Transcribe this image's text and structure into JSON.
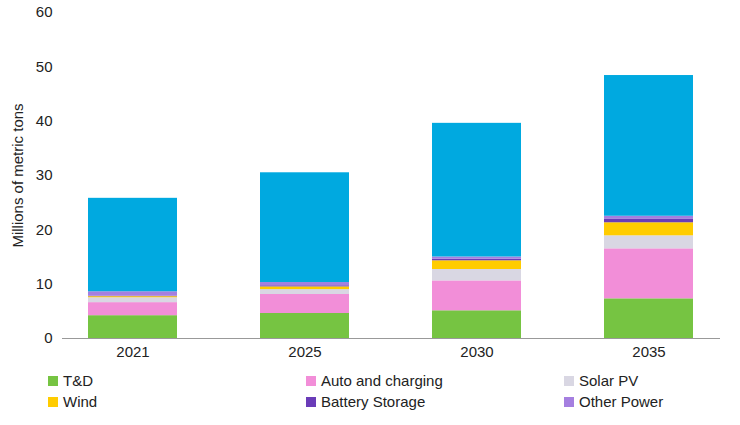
{
  "chart_data": {
    "type": "bar",
    "stacked": true,
    "y_label": "Millions of metric tons",
    "categories": [
      "2021",
      "2025",
      "2030",
      "2035"
    ],
    "ylim": [
      0,
      60
    ],
    "yticks": [
      0,
      10,
      20,
      30,
      40,
      50,
      60
    ],
    "legend": "bottom",
    "series": [
      {
        "name": "T&D",
        "color": "#76c442",
        "values": [
          4.2,
          4.6,
          5.1,
          7.3
        ]
      },
      {
        "name": "Auto and charging",
        "color": "#f28ed8",
        "values": [
          2.4,
          3.5,
          5.5,
          9.2
        ]
      },
      {
        "name": "Solar PV",
        "color": "#d9d7e3",
        "values": [
          0.9,
          0.9,
          2.1,
          2.4
        ]
      },
      {
        "name": "Wind",
        "color": "#ffcc00",
        "values": [
          0.2,
          0.5,
          1.6,
          2.4
        ]
      },
      {
        "name": "Battery Storage",
        "color": "#6a3cb8",
        "values": [
          0.1,
          0.2,
          0.3,
          0.7
        ]
      },
      {
        "name": "Other Power",
        "color": "#a57fe0",
        "values": [
          0.8,
          0.6,
          0.4,
          0.5
        ]
      },
      {
        "name": null,
        "color": "#00a9e0",
        "values": [
          17.2,
          20.2,
          24.6,
          25.9
        ]
      }
    ]
  }
}
